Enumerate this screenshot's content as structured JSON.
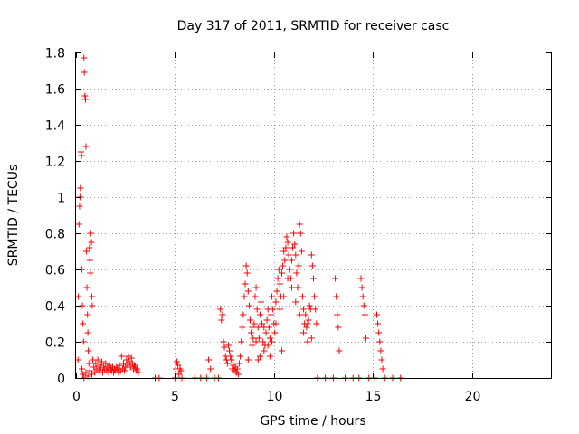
{
  "chart_data": {
    "type": "scatter",
    "title": "Day 317 of 2011, SRMTID for receiver casc",
    "xlabel": "GPS time / hours",
    "ylabel": "SRMTID / TECUs",
    "xlim": [
      0,
      24
    ],
    "ylim": [
      0,
      1.8
    ],
    "xticks": [
      0,
      5,
      10,
      15,
      20
    ],
    "yticks": [
      0,
      0.2,
      0.4,
      0.6,
      0.8,
      1,
      1.2,
      1.4,
      1.6,
      1.8
    ],
    "ytick_labels": [
      "0",
      "0.2",
      "0.4",
      "0.6",
      "0.8",
      "1",
      "1.2",
      "1.4",
      "1.6",
      "1.8"
    ],
    "grid": true,
    "marker": "+",
    "color": "#ff0000",
    "series": [
      {
        "points": [
          [
            0.1,
            0.1
          ],
          [
            0.12,
            0.45
          ],
          [
            0.15,
            0.85
          ],
          [
            0.18,
            0.95
          ],
          [
            0.2,
            1.0
          ],
          [
            0.22,
            1.05
          ],
          [
            0.25,
            1.25
          ],
          [
            0.28,
            1.23
          ],
          [
            0.3,
            0.6
          ],
          [
            0.32,
            0.4
          ],
          [
            0.35,
            0.3
          ],
          [
            0.38,
            0.2
          ],
          [
            0.4,
            1.77
          ],
          [
            0.42,
            1.69
          ],
          [
            0.45,
            1.56
          ],
          [
            0.48,
            1.54
          ],
          [
            0.5,
            1.28
          ],
          [
            0.52,
            0.7
          ],
          [
            0.55,
            0.5
          ],
          [
            0.58,
            0.35
          ],
          [
            0.6,
            0.25
          ],
          [
            0.62,
            0.15
          ],
          [
            0.65,
            0.08
          ],
          [
            0.68,
            0.72
          ],
          [
            0.7,
            0.65
          ],
          [
            0.72,
            0.58
          ],
          [
            0.75,
            0.8
          ],
          [
            0.78,
            0.75
          ],
          [
            0.8,
            0.45
          ],
          [
            0.82,
            0.4
          ],
          [
            0.3,
            0.05
          ],
          [
            0.35,
            0.02
          ],
          [
            0.4,
            0.0
          ],
          [
            0.5,
            0.03
          ],
          [
            0.6,
            0.01
          ],
          [
            0.7,
            0.04
          ],
          [
            0.8,
            0.02
          ],
          [
            0.85,
            0.1
          ],
          [
            0.9,
            0.06
          ],
          [
            0.95,
            0.03
          ],
          [
            1.0,
            0.08
          ],
          [
            1.05,
            0.05
          ],
          [
            1.1,
            0.1
          ],
          [
            1.15,
            0.04
          ],
          [
            1.2,
            0.07
          ],
          [
            1.25,
            0.06
          ],
          [
            1.3,
            0.09
          ],
          [
            1.35,
            0.03
          ],
          [
            1.4,
            0.06
          ],
          [
            1.45,
            0.05
          ],
          [
            1.5,
            0.08
          ],
          [
            1.55,
            0.04
          ],
          [
            1.6,
            0.06
          ],
          [
            1.65,
            0.03
          ],
          [
            1.7,
            0.07
          ],
          [
            1.75,
            0.05
          ],
          [
            1.8,
            0.04
          ],
          [
            1.85,
            0.06
          ],
          [
            1.9,
            0.03
          ],
          [
            1.95,
            0.05
          ],
          [
            2.0,
            0.04
          ],
          [
            2.05,
            0.06
          ],
          [
            2.1,
            0.05
          ],
          [
            2.15,
            0.03
          ],
          [
            2.2,
            0.07
          ],
          [
            2.25,
            0.04
          ],
          [
            2.3,
            0.12
          ],
          [
            2.35,
            0.05
          ],
          [
            2.4,
            0.08
          ],
          [
            2.45,
            0.04
          ],
          [
            2.5,
            0.06
          ],
          [
            2.55,
            0.1
          ],
          [
            2.6,
            0.07
          ],
          [
            2.65,
            0.12
          ],
          [
            2.7,
            0.09
          ],
          [
            2.75,
            0.06
          ],
          [
            2.8,
            0.11
          ],
          [
            2.85,
            0.08
          ],
          [
            2.9,
            0.05
          ],
          [
            2.95,
            0.07
          ],
          [
            3.0,
            0.06
          ],
          [
            3.05,
            0.04
          ],
          [
            3.1,
            0.05
          ],
          [
            3.15,
            0.03
          ],
          [
            4.0,
            0.0
          ],
          [
            4.2,
            0.0
          ],
          [
            5.0,
            0.0
          ],
          [
            5.05,
            0.05
          ],
          [
            5.1,
            0.09
          ],
          [
            5.15,
            0.07
          ],
          [
            5.2,
            0.02
          ],
          [
            5.25,
            0.05
          ],
          [
            5.3,
            0.04
          ],
          [
            5.35,
            0.0
          ],
          [
            6.0,
            0.0
          ],
          [
            6.3,
            0.0
          ],
          [
            6.6,
            0.0
          ],
          [
            6.7,
            0.1
          ],
          [
            6.8,
            0.05
          ],
          [
            7.0,
            0.0
          ],
          [
            7.2,
            0.0
          ],
          [
            7.3,
            0.38
          ],
          [
            7.35,
            0.32
          ],
          [
            7.4,
            0.35
          ],
          [
            7.45,
            0.2
          ],
          [
            7.5,
            0.17
          ],
          [
            7.55,
            0.12
          ],
          [
            7.6,
            0.1
          ],
          [
            7.65,
            0.08
          ],
          [
            7.7,
            0.18
          ],
          [
            7.75,
            0.15
          ],
          [
            7.8,
            0.12
          ],
          [
            7.85,
            0.1
          ],
          [
            7.9,
            0.05
          ],
          [
            7.95,
            0.07
          ],
          [
            8.0,
            0.04
          ],
          [
            8.05,
            0.06
          ],
          [
            8.1,
            0.03
          ],
          [
            8.15,
            0.05
          ],
          [
            8.2,
            0.02
          ],
          [
            8.25,
            0.08
          ],
          [
            8.3,
            0.12
          ],
          [
            8.35,
            0.2
          ],
          [
            8.4,
            0.28
          ],
          [
            8.45,
            0.35
          ],
          [
            8.5,
            0.45
          ],
          [
            8.55,
            0.52
          ],
          [
            8.6,
            0.62
          ],
          [
            8.65,
            0.58
          ],
          [
            8.7,
            0.48
          ],
          [
            8.75,
            0.4
          ],
          [
            8.8,
            0.32
          ],
          [
            8.85,
            0.25
          ],
          [
            8.9,
            0.18
          ],
          [
            8.95,
            0.22
          ],
          [
            9.0,
            0.3
          ],
          [
            9.05,
            0.45
          ],
          [
            9.1,
            0.5
          ],
          [
            9.15,
            0.38
          ],
          [
            9.2,
            0.28
          ],
          [
            9.25,
            0.22
          ],
          [
            9.3,
            0.35
          ],
          [
            9.35,
            0.42
          ],
          [
            9.4,
            0.3
          ],
          [
            9.45,
            0.2
          ],
          [
            9.5,
            0.15
          ],
          [
            9.55,
            0.18
          ],
          [
            9.6,
            0.25
          ],
          [
            9.65,
            0.32
          ],
          [
            9.7,
            0.38
          ],
          [
            9.75,
            0.28
          ],
          [
            9.8,
            0.22
          ],
          [
            9.85,
            0.35
          ],
          [
            9.9,
            0.45
          ],
          [
            9.95,
            0.38
          ],
          [
            10.0,
            0.3
          ],
          [
            10.05,
            0.25
          ],
          [
            10.1,
            0.42
          ],
          [
            10.15,
            0.48
          ],
          [
            10.2,
            0.55
          ],
          [
            10.25,
            0.6
          ],
          [
            10.3,
            0.52
          ],
          [
            10.35,
            0.45
          ],
          [
            10.4,
            0.58
          ],
          [
            10.45,
            0.62
          ],
          [
            10.5,
            0.7
          ],
          [
            10.55,
            0.65
          ],
          [
            10.6,
            0.72
          ],
          [
            10.65,
            0.78
          ],
          [
            10.7,
            0.75
          ],
          [
            10.75,
            0.68
          ],
          [
            10.8,
            0.6
          ],
          [
            10.85,
            0.55
          ],
          [
            10.9,
            0.65
          ],
          [
            10.95,
            0.72
          ],
          [
            11.0,
            0.8
          ],
          [
            11.05,
            0.74
          ],
          [
            11.1,
            0.68
          ],
          [
            11.15,
            0.58
          ],
          [
            11.2,
            0.5
          ],
          [
            11.25,
            0.62
          ],
          [
            11.3,
            0.85
          ],
          [
            11.35,
            0.8
          ],
          [
            11.4,
            0.7
          ],
          [
            11.45,
            0.45
          ],
          [
            11.5,
            0.38
          ],
          [
            11.55,
            0.3
          ],
          [
            11.6,
            0.35
          ],
          [
            11.65,
            0.28
          ],
          [
            11.7,
            0.2
          ],
          [
            11.75,
            0.32
          ],
          [
            11.8,
            0.4
          ],
          [
            11.85,
            0.38
          ],
          [
            11.9,
            0.68
          ],
          [
            11.95,
            0.62
          ],
          [
            12.0,
            0.55
          ],
          [
            12.05,
            0.45
          ],
          [
            12.1,
            0.38
          ],
          [
            12.15,
            0.3
          ],
          [
            12.2,
            0.0
          ],
          [
            12.6,
            0.0
          ],
          [
            13.0,
            0.0
          ],
          [
            13.1,
            0.55
          ],
          [
            13.15,
            0.45
          ],
          [
            13.2,
            0.35
          ],
          [
            13.25,
            0.28
          ],
          [
            13.3,
            0.15
          ],
          [
            13.6,
            0.0
          ],
          [
            14.0,
            0.0
          ],
          [
            14.3,
            0.0
          ],
          [
            14.4,
            0.55
          ],
          [
            14.45,
            0.5
          ],
          [
            14.5,
            0.45
          ],
          [
            14.55,
            0.4
          ],
          [
            14.6,
            0.35
          ],
          [
            14.65,
            0.22
          ],
          [
            14.8,
            0.0
          ],
          [
            15.1,
            0.0
          ],
          [
            15.2,
            0.35
          ],
          [
            15.25,
            0.3
          ],
          [
            15.3,
            0.25
          ],
          [
            15.35,
            0.2
          ],
          [
            15.4,
            0.15
          ],
          [
            15.45,
            0.1
          ],
          [
            15.5,
            0.05
          ],
          [
            15.6,
            0.0
          ],
          [
            16.0,
            0.0
          ],
          [
            16.4,
            0.0
          ],
          [
            8.7,
            0.1
          ],
          [
            8.9,
            0.28
          ],
          [
            9.1,
            0.2
          ],
          [
            9.3,
            0.12
          ],
          [
            9.5,
            0.28
          ],
          [
            9.7,
            0.18
          ],
          [
            9.9,
            0.2
          ],
          [
            10.1,
            0.3
          ],
          [
            10.3,
            0.38
          ],
          [
            10.5,
            0.45
          ],
          [
            10.7,
            0.55
          ],
          [
            10.9,
            0.5
          ],
          [
            11.1,
            0.42
          ],
          [
            11.3,
            0.35
          ],
          [
            11.5,
            0.25
          ],
          [
            11.7,
            0.3
          ],
          [
            11.9,
            0.22
          ],
          [
            9.2,
            0.1
          ],
          [
            9.8,
            0.12
          ],
          [
            10.4,
            0.15
          ]
        ]
      }
    ]
  }
}
